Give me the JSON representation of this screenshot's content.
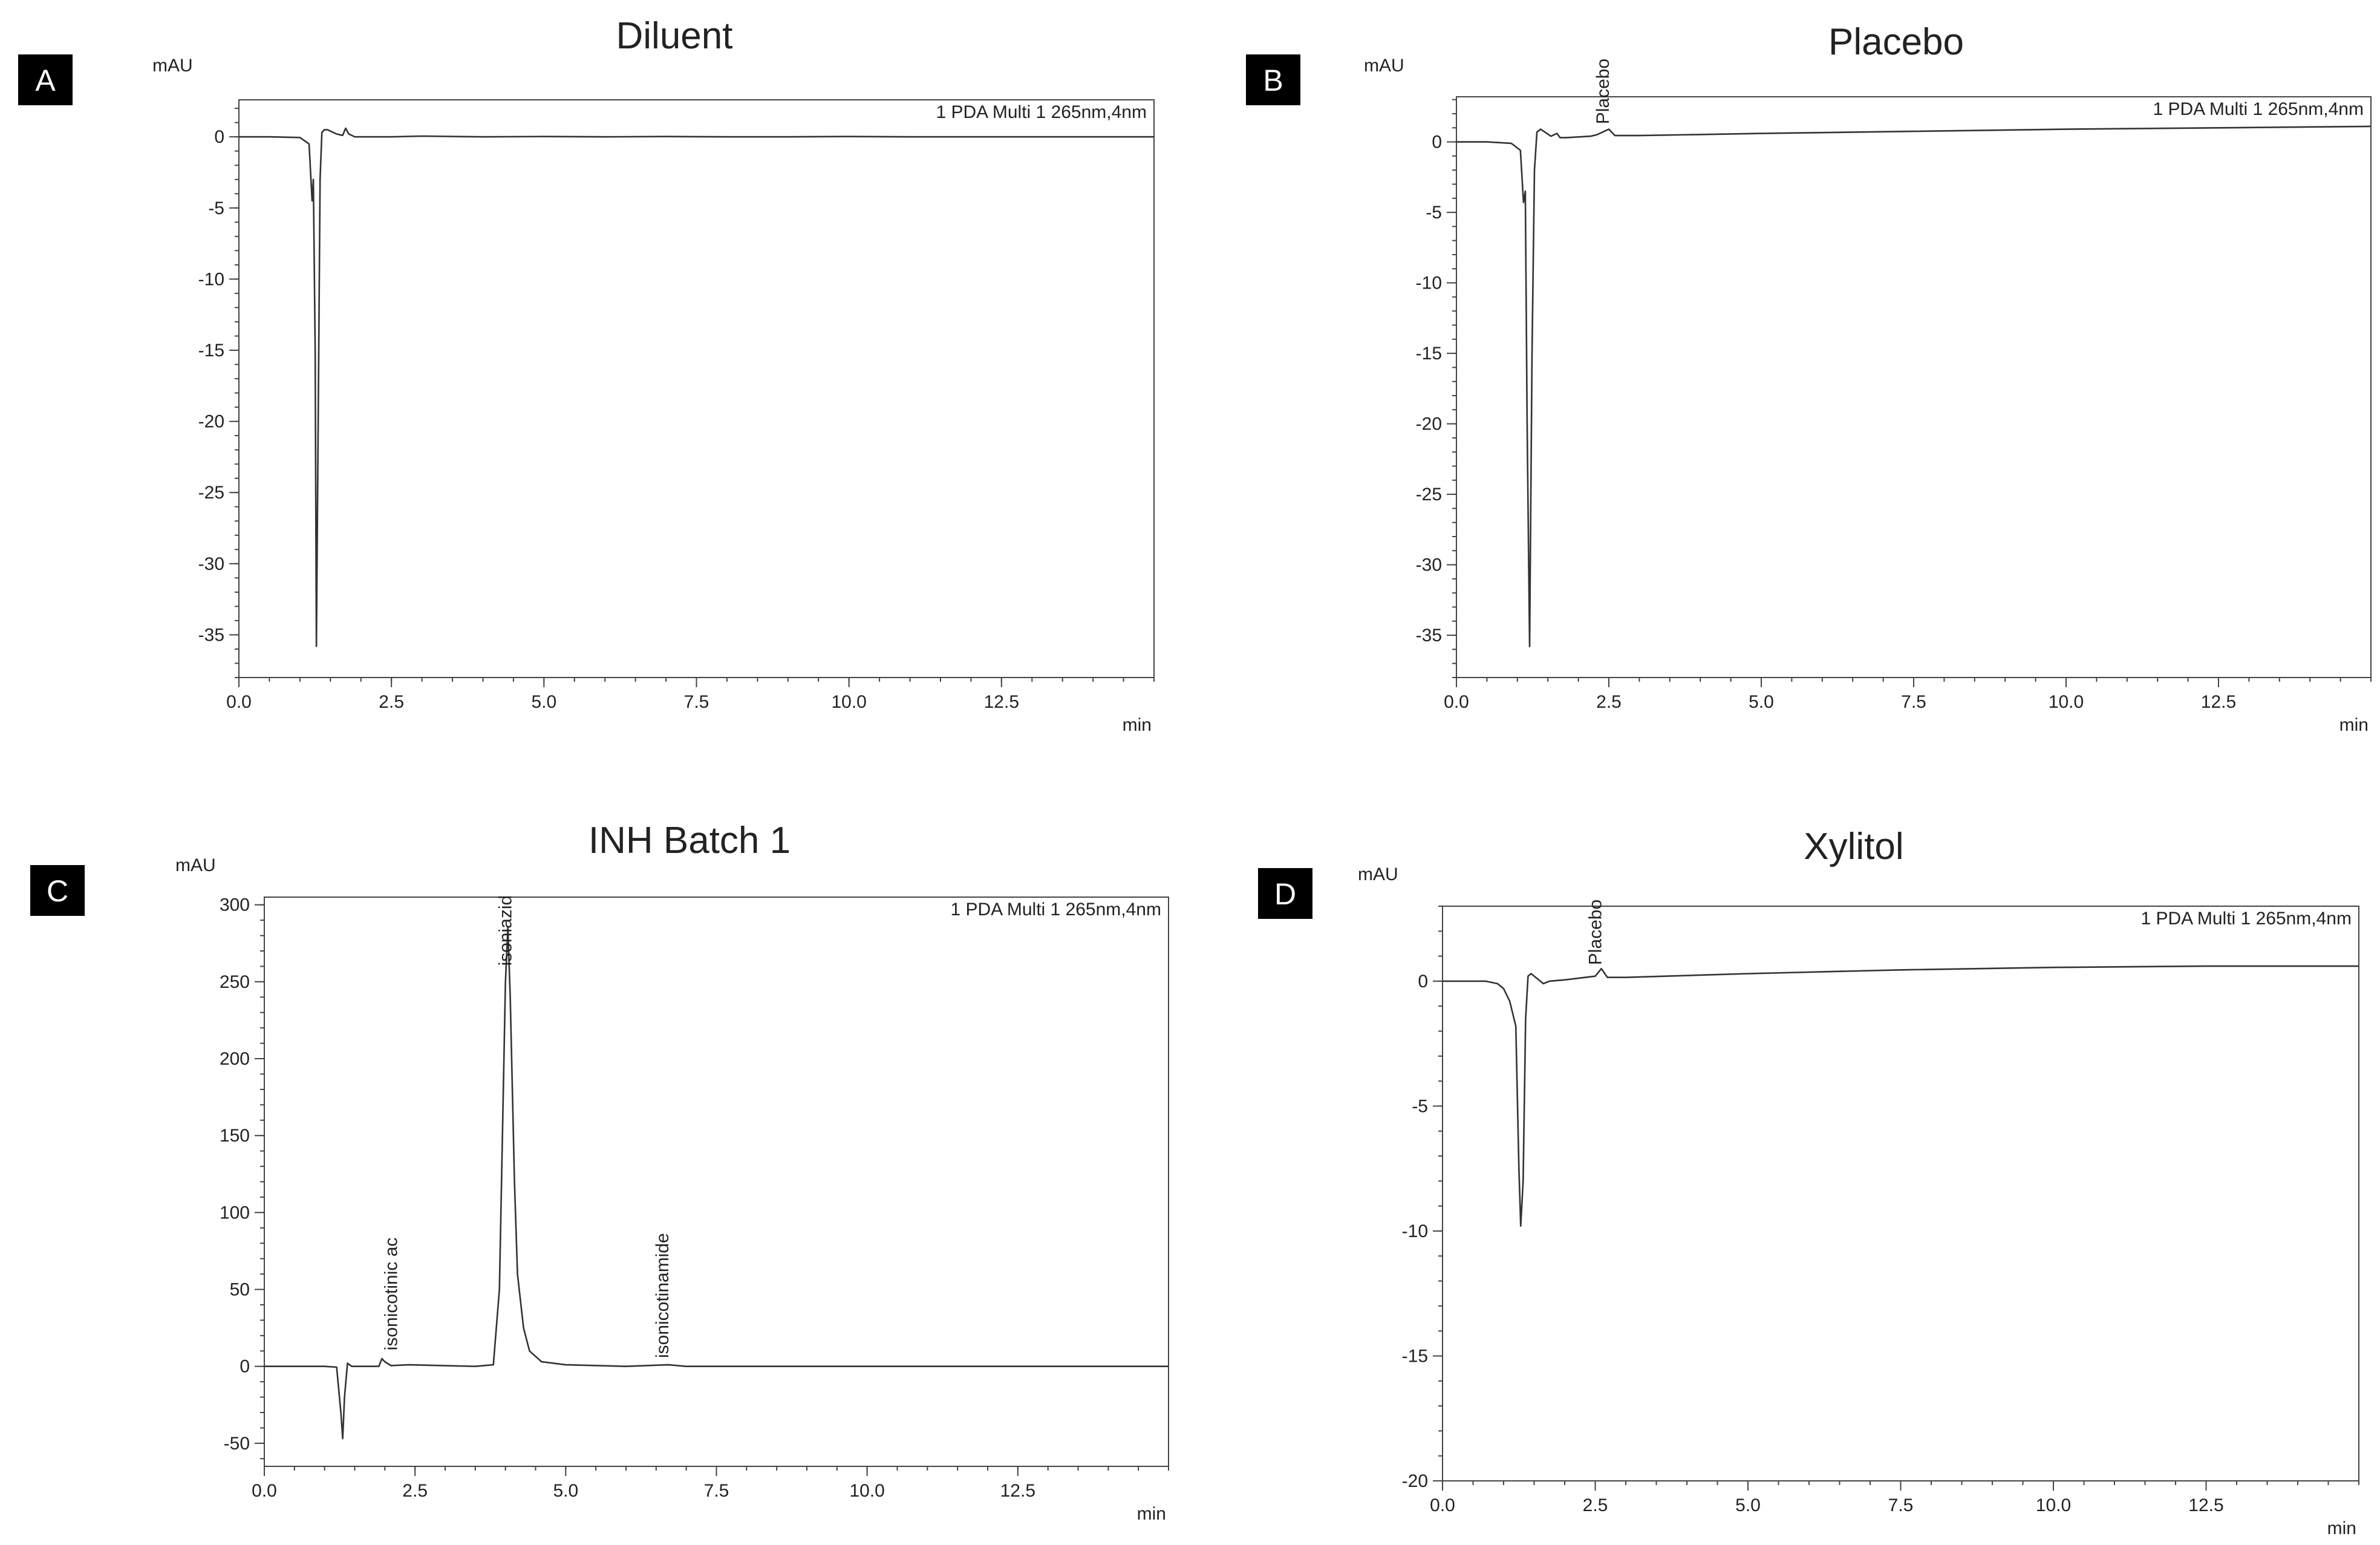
{
  "chart_data": [
    {
      "type": "line",
      "panel_letter": "A",
      "title": "Diluent",
      "ylabel": "mAU",
      "xlabel": "min",
      "detector_label": "1 PDA Multi 1 265nm,4nm",
      "xlim": [
        0,
        15
      ],
      "ylim": [
        -38,
        2.6
      ],
      "x_ticks": [
        "0.0",
        "2.5",
        "5.0",
        "7.5",
        "10.0",
        "12.5"
      ],
      "x_tick_values": [
        0,
        2.5,
        5,
        7.5,
        10,
        12.5
      ],
      "y_ticks": [
        "0",
        "-5",
        "-10",
        "-15",
        "-20",
        "-25",
        "-30",
        "-35"
      ],
      "y_tick_values": [
        0,
        -5,
        -10,
        -15,
        -20,
        -25,
        -30,
        -35
      ],
      "peak_labels": [],
      "series": [
        {
          "x": [
            0,
            0.5,
            1.0,
            1.15,
            1.2,
            1.22,
            1.25,
            1.27,
            1.3,
            1.33,
            1.36,
            1.4,
            1.45,
            1.5,
            1.6,
            1.7,
            1.75,
            1.8,
            1.9,
            2.5,
            3,
            4,
            5,
            6,
            7,
            8,
            9,
            10,
            11,
            12,
            13,
            14,
            15
          ],
          "y": [
            0,
            0,
            -0.05,
            -0.5,
            -4.5,
            -3.0,
            -15,
            -35.8,
            -20,
            -3,
            0.3,
            0.5,
            0.5,
            0.4,
            0.2,
            0.1,
            0.6,
            0.2,
            0.0,
            0.0,
            0.05,
            0.0,
            0.02,
            0.0,
            0.02,
            0.0,
            0.0,
            0.02,
            0.0,
            0.0,
            0.0,
            0.0,
            0.0
          ]
        }
      ]
    },
    {
      "type": "line",
      "panel_letter": "B",
      "title": "Placebo",
      "ylabel": "mAU",
      "xlabel": "min",
      "detector_label": "1 PDA Multi 1 265nm,4nm",
      "xlim": [
        0,
        15
      ],
      "ylim": [
        -38,
        3.2
      ],
      "x_ticks": [
        "0.0",
        "2.5",
        "5.0",
        "7.5",
        "10.0",
        "12.5"
      ],
      "x_tick_values": [
        0,
        2.5,
        5,
        7.5,
        10,
        12.5
      ],
      "y_ticks": [
        "0",
        "-5",
        "-10",
        "-15",
        "-20",
        "-25",
        "-30",
        "-35"
      ],
      "y_tick_values": [
        0,
        -5,
        -10,
        -15,
        -20,
        -25,
        -30,
        -35
      ],
      "peak_labels": [
        {
          "text": "Placebo",
          "x": 2.5,
          "y": 1.0
        }
      ],
      "series": [
        {
          "x": [
            0,
            0.5,
            0.9,
            1.05,
            1.1,
            1.13,
            1.16,
            1.2,
            1.24,
            1.28,
            1.32,
            1.38,
            1.45,
            1.55,
            1.65,
            1.7,
            1.8,
            2.2,
            2.3,
            2.5,
            2.6,
            3,
            5,
            7.5,
            10,
            12.5,
            15
          ],
          "y": [
            0,
            0,
            -0.1,
            -0.6,
            -4.3,
            -3.5,
            -20,
            -35.8,
            -15,
            -2,
            0.7,
            0.9,
            0.7,
            0.4,
            0.6,
            0.3,
            0.3,
            0.4,
            0.5,
            0.9,
            0.45,
            0.45,
            0.6,
            0.75,
            0.9,
            1.0,
            1.1
          ]
        }
      ]
    },
    {
      "type": "line",
      "panel_letter": "C",
      "title": "INH Batch 1",
      "ylabel": "mAU",
      "xlabel": "min",
      "detector_label": "1 PDA Multi 1 265nm,4nm",
      "xlim": [
        0,
        15
      ],
      "ylim": [
        -65,
        305
      ],
      "x_ticks": [
        "0.0",
        "2.5",
        "5.0",
        "7.5",
        "10.0",
        "12.5"
      ],
      "x_tick_values": [
        0,
        2.5,
        5,
        7.5,
        10,
        12.5
      ],
      "y_ticks": [
        "300",
        "250",
        "200",
        "150",
        "100",
        "50",
        "0",
        "-50"
      ],
      "y_tick_values": [
        300,
        250,
        200,
        150,
        100,
        50,
        0,
        -50
      ],
      "peak_labels": [
        {
          "text": "isonicotinic ac",
          "x": 2.2,
          "y": 8
        },
        {
          "text": "isoniazid",
          "x": 4.1,
          "y": 258
        },
        {
          "text": "isonicotinamide",
          "x": 6.7,
          "y": 3
        }
      ],
      "series": [
        {
          "x": [
            0,
            1.0,
            1.2,
            1.27,
            1.3,
            1.33,
            1.38,
            1.45,
            1.6,
            1.9,
            1.95,
            2.0,
            2.1,
            2.4,
            3.5,
            3.8,
            3.9,
            3.95,
            4.0,
            4.04,
            4.08,
            4.15,
            4.2,
            4.3,
            4.4,
            4.6,
            5.0,
            6,
            6.7,
            7,
            8,
            10,
            12,
            15
          ],
          "y": [
            0,
            0,
            -0.5,
            -30,
            -47,
            -20,
            2,
            0,
            0,
            0,
            5,
            3,
            0.5,
            1,
            0,
            1,
            50,
            150,
            250,
            285,
            240,
            120,
            60,
            25,
            10,
            3,
            1,
            0,
            1,
            0,
            0,
            0,
            0,
            0
          ]
        }
      ]
    },
    {
      "type": "line",
      "panel_letter": "D",
      "title": "Xylitol",
      "ylabel": "mAU",
      "xlabel": "min",
      "detector_label": "1 PDA Multi 1 265nm,4nm",
      "xlim": [
        0,
        15
      ],
      "ylim": [
        -20,
        3.0
      ],
      "x_ticks": [
        "0.0",
        "2.5",
        "5.0",
        "7.5",
        "10.0",
        "12.5"
      ],
      "x_tick_values": [
        0,
        2.5,
        5,
        7.5,
        10,
        12.5
      ],
      "y_ticks": [
        "0",
        "-5",
        "-10",
        "-15",
        "-20"
      ],
      "y_tick_values": [
        0,
        -5,
        -10,
        -15,
        -20
      ],
      "peak_labels": [
        {
          "text": "Placebo",
          "x": 2.6,
          "y": 0.5
        }
      ],
      "series": [
        {
          "x": [
            0,
            0.7,
            0.9,
            1.0,
            1.1,
            1.2,
            1.25,
            1.28,
            1.32,
            1.36,
            1.4,
            1.45,
            1.55,
            1.65,
            1.75,
            2.0,
            2.5,
            2.6,
            2.7,
            3,
            5,
            7.5,
            10,
            12.5,
            15
          ],
          "y": [
            0,
            0,
            -0.1,
            -0.3,
            -0.8,
            -1.8,
            -7.5,
            -9.8,
            -8,
            -1.5,
            0.2,
            0.3,
            0.1,
            -0.1,
            0.0,
            0.05,
            0.2,
            0.5,
            0.15,
            0.15,
            0.3,
            0.45,
            0.55,
            0.6,
            0.6
          ]
        }
      ]
    }
  ]
}
